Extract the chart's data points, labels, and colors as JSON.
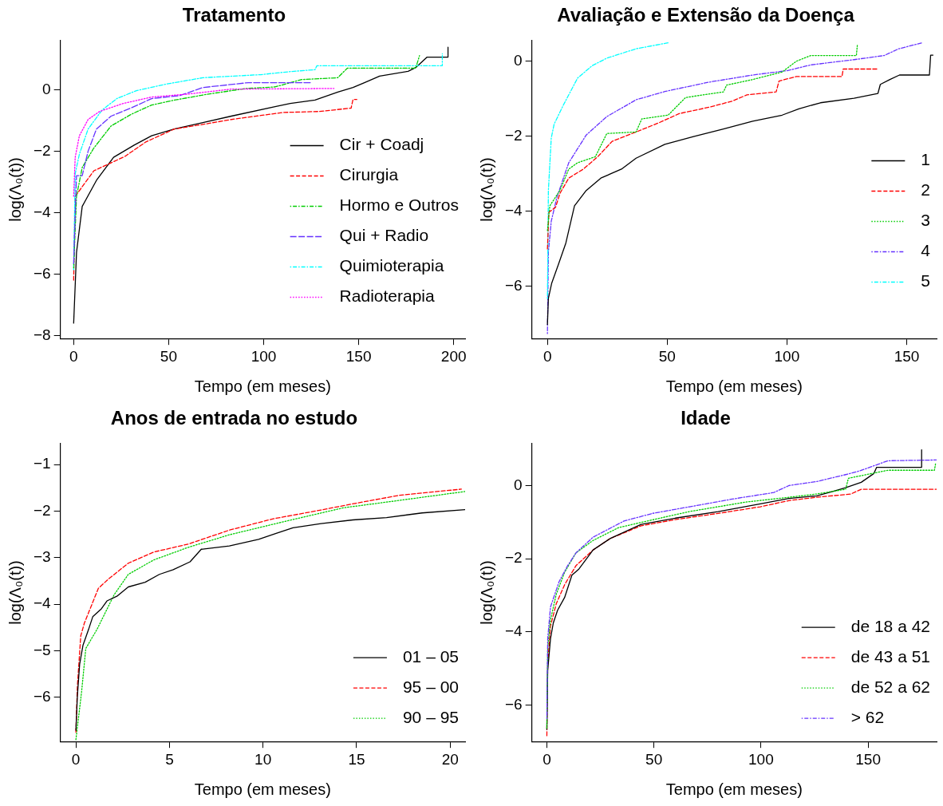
{
  "chart_data": [
    {
      "type": "line",
      "title": "Tratamento",
      "xlabel": "Tempo (em meses)",
      "ylabel": "log(Λ₀(t))",
      "xlim": [
        -7,
        206
      ],
      "ylim": [
        -8.1,
        1.6
      ],
      "xticks": [
        0,
        50,
        100,
        150,
        200
      ],
      "yticks": [
        -8,
        -6,
        -4,
        -2,
        0
      ],
      "legend": "right",
      "series": [
        {
          "name": "Cir + Coadj",
          "color": "#000000",
          "line_style": "solid",
          "x": [
            0,
            1.5,
            4.5,
            12,
            21,
            32,
            41,
            53,
            68,
            83,
            106,
            114,
            127,
            139,
            147,
            153,
            161,
            176,
            180,
            186,
            197,
            197
          ],
          "values": [
            -7.6,
            -5.3,
            -3.8,
            -2.95,
            -2.2,
            -1.8,
            -1.5,
            -1.28,
            -1.07,
            -0.86,
            -0.55,
            -0.45,
            -0.34,
            -0.08,
            0.07,
            0.23,
            0.44,
            0.6,
            0.72,
            1.06,
            1.06,
            1.38
          ]
        },
        {
          "name": "Cirurgia",
          "color": "#ff0000",
          "line_style": "dashed",
          "x": [
            0,
            0.8,
            4.5,
            10.6,
            18,
            27,
            38,
            53,
            68,
            83,
            98.5,
            110.6,
            129,
            146,
            147,
            149
          ],
          "values": [
            -6.2,
            -3.47,
            -3.16,
            -2.64,
            -2.43,
            -2.17,
            -1.7,
            -1.28,
            -1.13,
            -0.97,
            -0.84,
            -0.74,
            -0.71,
            -0.6,
            -0.32,
            -0.32
          ]
        },
        {
          "name": "Hormo e Outros",
          "color": "#00cd00",
          "line_style": "dashdot",
          "x": [
            0,
            1.5,
            4.5,
            10.6,
            19.7,
            30,
            41,
            53,
            71,
            91,
            106,
            120,
            139,
            144,
            180,
            182
          ],
          "values": [
            -5.8,
            -3.47,
            -2.53,
            -1.9,
            -1.18,
            -0.81,
            -0.5,
            -0.34,
            -0.14,
            0.04,
            0.09,
            0.33,
            0.39,
            0.7,
            0.7,
            1.11
          ]
        },
        {
          "name": "Qui + Radio",
          "color": "#6633ff",
          "line_style": "longdash",
          "x": [
            0,
            0.8,
            1.5,
            4.5,
            7.6,
            12,
            19.7,
            30,
            41,
            56,
            68,
            92,
            125
          ],
          "values": [
            -5.66,
            -4.1,
            -2.8,
            -2.8,
            -2,
            -1.28,
            -0.86,
            -0.6,
            -0.29,
            -0.19,
            0.07,
            0.23,
            0.23
          ]
        },
        {
          "name": "Quimioterapia",
          "color": "#00ffff",
          "line_style": "dashdot",
          "x": [
            0,
            0.8,
            3,
            7.6,
            15,
            22.7,
            33,
            48.5,
            68,
            98.5,
            114,
            127,
            128,
            194,
            194
          ],
          "values": [
            -5.86,
            -2.74,
            -2.1,
            -1.28,
            -0.66,
            -0.29,
            -0.03,
            0.18,
            0.39,
            0.49,
            0.59,
            0.65,
            0.78,
            0.78,
            1.17
          ]
        },
        {
          "name": "Radioterapia",
          "color": "#ff00ff",
          "line_style": "dotted",
          "x": [
            0,
            0.8,
            3,
            7.6,
            13.6,
            26,
            41,
            60.6,
            83,
            137
          ],
          "values": [
            -3.47,
            -2.2,
            -1.5,
            -0.97,
            -0.71,
            -0.45,
            -0.24,
            -0.14,
            0.02,
            0.04
          ]
        }
      ]
    },
    {
      "type": "line",
      "title": "Avaliação e Extensão da Doença",
      "xlabel": "Tempo (em meses)",
      "ylabel": "log(Λ₀(t))",
      "xlim": [
        -6.5,
        162.5
      ],
      "ylim": [
        -7.4,
        0.55
      ],
      "xticks": [
        0,
        50,
        100,
        150
      ],
      "yticks": [
        -6,
        -4,
        -2,
        0
      ],
      "legend": "right",
      "series": [
        {
          "name": "1",
          "color": "#000000",
          "line_style": "solid",
          "x": [
            0,
            0.4,
            1.8,
            4.6,
            7.7,
            11.3,
            16.2,
            22.3,
            30.9,
            37,
            49,
            61,
            73.5,
            85.7,
            98,
            105,
            114,
            128,
            138,
            139,
            143,
            147,
            159.5,
            160,
            161
          ],
          "values": [
            -7.03,
            -6.33,
            -5.92,
            -5.42,
            -4.85,
            -3.86,
            -3.45,
            -3.12,
            -2.88,
            -2.59,
            -2.22,
            -2.01,
            -1.81,
            -1.6,
            -1.44,
            -1.27,
            -1.11,
            -0.99,
            -0.86,
            -0.62,
            -0.49,
            -0.37,
            -0.37,
            0.16,
            0.16
          ]
        },
        {
          "name": "2",
          "color": "#ff0000",
          "line_style": "dashed",
          "x": [
            0,
            0.6,
            3.4,
            5.2,
            8.9,
            15,
            21,
            27,
            37,
            46.7,
            55,
            67.4,
            77,
            83.3,
            95.5,
            96.7,
            104,
            123,
            123.5,
            138
          ],
          "values": [
            -5.01,
            -4.03,
            -3.9,
            -3.53,
            -3.12,
            -2.88,
            -2.55,
            -2.14,
            -1.89,
            -1.64,
            -1.4,
            -1.23,
            -1.07,
            -0.9,
            -0.82,
            -0.53,
            -0.41,
            -0.41,
            -0.21,
            -0.21
          ]
        },
        {
          "name": "3",
          "color": "#00cd00",
          "line_style": "dotted",
          "x": [
            0,
            1,
            5.2,
            8.9,
            12.6,
            20,
            24.8,
            37,
            39.4,
            50.4,
            57.7,
            73.5,
            74.8,
            85.7,
            98,
            104,
            110,
            129,
            129.4
          ],
          "values": [
            -4.52,
            -3.86,
            -3.45,
            -2.88,
            -2.71,
            -2.55,
            -1.93,
            -1.89,
            -1.54,
            -1.44,
            -0.97,
            -0.82,
            -0.64,
            -0.49,
            -0.29,
            0,
            0.15,
            0.15,
            0.43
          ]
        },
        {
          "name": "4",
          "color": "#6633ff",
          "line_style": "dashdot",
          "x": [
            0,
            0.4,
            1.6,
            4,
            8.9,
            16.2,
            24.8,
            37,
            49,
            67.4,
            85.7,
            100.4,
            110,
            128,
            140.6,
            146.7,
            156.5
          ],
          "values": [
            -7.27,
            -5.09,
            -4.27,
            -3.62,
            -2.71,
            -1.97,
            -1.48,
            -1.03,
            -0.81,
            -0.56,
            -0.37,
            -0.25,
            -0.1,
            0.04,
            0.15,
            0.33,
            0.49
          ]
        },
        {
          "name": "5",
          "color": "#00ffff",
          "line_style": "dashdot",
          "x": [
            0,
            0.4,
            1.6,
            2.8,
            6.5,
            12.6,
            18.7,
            24.8,
            37,
            50.4
          ],
          "values": [
            -6.33,
            -3.45,
            -2.05,
            -1.68,
            -1.19,
            -0.45,
            -0.12,
            0.08,
            0.33,
            0.49
          ]
        }
      ]
    },
    {
      "type": "line",
      "title": "Anos de entrada no estudo",
      "xlabel": "Tempo (em meses)",
      "ylabel": "log(Λ₀(t))",
      "xlim": [
        -0.83,
        20.8
      ],
      "ylim": [
        -6.95,
        -0.55
      ],
      "xticks": [
        0,
        5,
        10,
        15,
        20
      ],
      "yticks": [
        -6,
        -5,
        -4,
        -3,
        -2,
        -1
      ],
      "legend": "bottom right",
      "series": [
        {
          "name": "01 – 05",
          "color": "#000000",
          "line_style": "solid",
          "x": [
            0,
            0.08,
            0.2,
            0.38,
            0.68,
            0.9,
            1.36,
            1.66,
            2.19,
            2.8,
            3.7,
            4.46,
            5.2,
            6.1,
            6.7,
            8.2,
            9.76,
            10.7,
            11.6,
            13.1,
            14.8,
            16.6,
            18.5,
            20.8
          ],
          "values": [
            -6.71,
            -5.97,
            -5.29,
            -4.88,
            -4.54,
            -4.27,
            -4.1,
            -3.93,
            -3.83,
            -3.63,
            -3.53,
            -3.36,
            -3.26,
            -3.09,
            -2.82,
            -2.75,
            -2.61,
            -2.48,
            -2.36,
            -2.27,
            -2.19,
            -2.14,
            -2.04,
            -1.97
          ]
        },
        {
          "name": "95 – 00",
          "color": "#ff0000",
          "line_style": "dashed",
          "x": [
            0,
            0.08,
            0.26,
            0.45,
            1.2,
            1.74,
            2.8,
            4.16,
            6,
            8.2,
            10.5,
            12.8,
            15,
            17.3,
            20.6
          ],
          "values": [
            -6.75,
            -5.76,
            -4.68,
            -4.41,
            -3.66,
            -3.46,
            -3.12,
            -2.88,
            -2.71,
            -2.41,
            -2.17,
            -2,
            -1.83,
            -1.66,
            -1.53
          ]
        },
        {
          "name": "90 – 95",
          "color": "#00cd00",
          "line_style": "dotted",
          "x": [
            0,
            0.3,
            0.53,
            1.13,
            2.04,
            2.8,
            4.16,
            6,
            8.2,
            11.3,
            14.3,
            17.3,
            20.8
          ],
          "values": [
            -6.91,
            -5.9,
            -4.95,
            -4.54,
            -3.8,
            -3.36,
            -3.05,
            -2.78,
            -2.51,
            -2.21,
            -1.93,
            -1.77,
            -1.58
          ]
        }
      ]
    },
    {
      "type": "line",
      "title": "Idade",
      "xlabel": "Tempo (em meses)",
      "ylabel": "log(Λ₀(t))",
      "xlim": [
        -7,
        182
      ],
      "ylim": [
        -7,
        1.15
      ],
      "xticks": [
        0,
        50,
        100,
        150
      ],
      "yticks": [
        -6,
        -4,
        -2,
        0
      ],
      "legend": "bottom right",
      "series": [
        {
          "name": "de 18 a 42",
          "color": "#000000",
          "line_style": "solid",
          "x": [
            0,
            0.4,
            1.7,
            3,
            5,
            8.3,
            11.7,
            15,
            21.6,
            29.5,
            44,
            60,
            80,
            99.7,
            113,
            126,
            132.8,
            139.5,
            146.8,
            152.7,
            154,
            175,
            175
          ],
          "values": [
            -6.67,
            -5.06,
            -4.19,
            -3.76,
            -3.41,
            -3.06,
            -2.45,
            -2.28,
            -1.76,
            -1.45,
            -1.06,
            -0.89,
            -0.71,
            -0.5,
            -0.35,
            -0.28,
            -0.17,
            -0.06,
            0.09,
            0.33,
            0.5,
            0.5,
            0.98
          ]
        },
        {
          "name": "de 43 a 51",
          "color": "#ff0000",
          "line_style": "dashed",
          "x": [
            0,
            0.4,
            1.7,
            4.4,
            8.3,
            13.6,
            21.6,
            29.5,
            44,
            60,
            80,
            99.7,
            113,
            126,
            142,
            146.8,
            182
          ],
          "values": [
            -6.84,
            -4.89,
            -3.84,
            -3.23,
            -2.71,
            -2.19,
            -1.76,
            -1.45,
            -1.1,
            -0.93,
            -0.76,
            -0.58,
            -0.41,
            -0.32,
            -0.23,
            -0.1,
            -0.1
          ]
        },
        {
          "name": "de 52 a 62",
          "color": "#00cd00",
          "line_style": "dotted",
          "x": [
            0,
            0.4,
            1.7,
            4.4,
            8.3,
            13.6,
            21.6,
            33.5,
            46.8,
            66.6,
            93,
            113,
            126,
            139.5,
            140.8,
            159.3,
            181,
            181.5
          ],
          "values": [
            -6.63,
            -4.45,
            -3.67,
            -2.97,
            -2.37,
            -1.84,
            -1.5,
            -1.15,
            -0.97,
            -0.71,
            -0.45,
            -0.32,
            -0.23,
            -0.1,
            0.2,
            0.42,
            0.42,
            0.6
          ]
        },
        {
          "name": "> 62",
          "color": "#6633ff",
          "line_style": "dashdot",
          "x": [
            0,
            0.4,
            1.7,
            5.7,
            9.7,
            13.6,
            21.6,
            36,
            49.4,
            66.6,
            86.5,
            106,
            113,
            126,
            139.5,
            146,
            159.3,
            182
          ],
          "values": [
            -6.37,
            -4.19,
            -3.32,
            -2.63,
            -2.19,
            -1.84,
            -1.41,
            -0.97,
            -0.76,
            -0.58,
            -0.37,
            -0.19,
            0,
            0.11,
            0.3,
            0.4,
            0.68,
            0.7
          ]
        }
      ]
    }
  ]
}
